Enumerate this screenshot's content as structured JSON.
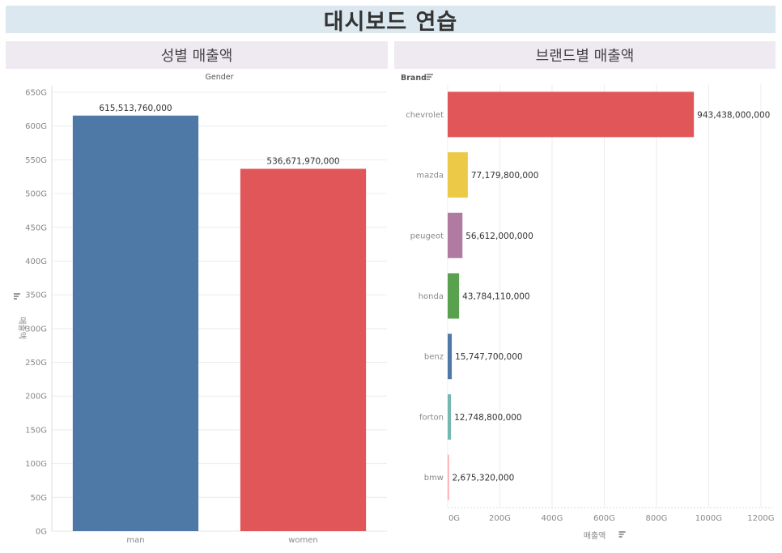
{
  "dashboard": {
    "title": "대시보드 연습"
  },
  "chart_data": [
    {
      "type": "bar",
      "title": "성별 매출액",
      "column_header": "Gender",
      "xlabel": "",
      "ylabel": "매출액",
      "categories": [
        "man",
        "women"
      ],
      "values": [
        615513760000,
        536671970000
      ],
      "value_labels": [
        "615,513,760,000",
        "536,671,970,000"
      ],
      "colors": [
        "#4e79a7",
        "#e15759"
      ],
      "ylim": [
        0,
        650000000000
      ],
      "yticks": [
        0,
        50000000000,
        100000000000,
        150000000000,
        200000000000,
        250000000000,
        300000000000,
        350000000000,
        400000000000,
        450000000000,
        500000000000,
        550000000000,
        600000000000,
        650000000000
      ],
      "ytick_labels": [
        "0G",
        "50G",
        "100G",
        "150G",
        "200G",
        "250G",
        "300G",
        "350G",
        "400G",
        "450G",
        "500G",
        "550G",
        "600G",
        "650G"
      ],
      "grid": true
    },
    {
      "type": "bar",
      "orientation": "horizontal",
      "title": "브랜드별 매출액",
      "row_header": "Brand",
      "xlabel": "매출액",
      "categories": [
        "chevrolet",
        "mazda",
        "peugeot",
        "honda",
        "benz",
        "forton",
        "bmw"
      ],
      "values": [
        943438000000,
        77179800000,
        56612000000,
        43784110000,
        15747700000,
        12748800000,
        2675320000
      ],
      "value_labels": [
        "943,438,000,000",
        "77,179,800,000",
        "56,612,000,000",
        "43,784,110,000",
        "15,747,700,000",
        "12,748,800,000",
        "2,675,320,000"
      ],
      "colors": [
        "#e15759",
        "#edc948",
        "#b07aa1",
        "#59a14f",
        "#4e79a7",
        "#76b7b2",
        "#ff9da7"
      ],
      "xlim": [
        0,
        1250000000000
      ],
      "xticks": [
        0,
        200000000000,
        400000000000,
        600000000000,
        800000000000,
        1000000000000,
        1200000000000
      ],
      "xtick_labels": [
        "0G",
        "200G",
        "400G",
        "600G",
        "800G",
        "1000G",
        "1200G"
      ],
      "grid": true
    }
  ]
}
